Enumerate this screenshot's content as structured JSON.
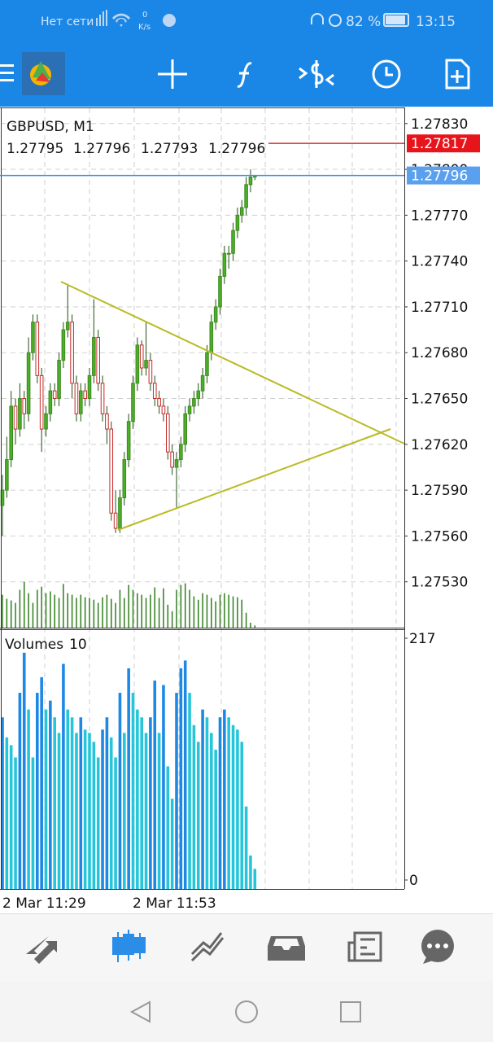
{
  "status_bar": {
    "network": "Нет сети",
    "speed": "0",
    "speed_unit": "K/s",
    "battery": "82 %",
    "time": "13:15"
  },
  "chart_data": {
    "type": "candlestick",
    "title": "GBPUSD, M1",
    "candles": [
      [
        1.2758,
        1.276,
        1.2756,
        1.2759
      ],
      [
        1.2759,
        1.27625,
        1.27585,
        1.2761
      ],
      [
        1.2761,
        1.27655,
        1.27605,
        1.27645
      ],
      [
        1.27645,
        1.2765,
        1.2762,
        1.2763
      ],
      [
        1.2763,
        1.2766,
        1.27625,
        1.2765
      ],
      [
        1.2765,
        1.27655,
        1.2763,
        1.2764
      ],
      [
        1.2764,
        1.2769,
        1.27635,
        1.2768
      ],
      [
        1.2768,
        1.27705,
        1.27675,
        1.277
      ],
      [
        1.277,
        1.27705,
        1.2766,
        1.27665
      ],
      [
        1.27665,
        1.2767,
        1.27615,
        1.2763
      ],
      [
        1.2763,
        1.27645,
        1.27625,
        1.2764
      ],
      [
        1.2764,
        1.2766,
        1.27635,
        1.27655
      ],
      [
        1.27655,
        1.2766,
        1.27645,
        1.2765
      ],
      [
        1.2765,
        1.2768,
        1.27645,
        1.27675
      ],
      [
        1.27675,
        1.277,
        1.2767,
        1.27695
      ],
      [
        1.27695,
        1.27725,
        1.2769,
        1.277
      ],
      [
        1.277,
        1.27705,
        1.2765,
        1.2766
      ],
      [
        1.2766,
        1.27665,
        1.27635,
        1.2764
      ],
      [
        1.2764,
        1.2766,
        1.27635,
        1.27655
      ],
      [
        1.27655,
        1.2766,
        1.27645,
        1.2765
      ],
      [
        1.2765,
        1.2767,
        1.27645,
        1.27665
      ],
      [
        1.27665,
        1.27715,
        1.2766,
        1.2769
      ],
      [
        1.2769,
        1.27695,
        1.27655,
        1.2766
      ],
      [
        1.2766,
        1.27665,
        1.27635,
        1.2764
      ],
      [
        1.2764,
        1.27645,
        1.2762,
        1.2763
      ],
      [
        1.2763,
        1.27635,
        1.2757,
        1.27575
      ],
      [
        1.27575,
        1.2759,
        1.27562,
        1.27565
      ],
      [
        1.27565,
        1.2759,
        1.27562,
        1.27585
      ],
      [
        1.27585,
        1.27615,
        1.2758,
        1.2761
      ],
      [
        1.2761,
        1.2764,
        1.27605,
        1.27635
      ],
      [
        1.27635,
        1.27665,
        1.2763,
        1.2766
      ],
      [
        1.2766,
        1.2769,
        1.27655,
        1.27685
      ],
      [
        1.27685,
        1.27688,
        1.27665,
        1.2767
      ],
      [
        1.2767,
        1.277,
        1.27665,
        1.27675
      ],
      [
        1.27675,
        1.2768,
        1.27655,
        1.2766
      ],
      [
        1.2766,
        1.27665,
        1.27645,
        1.2765
      ],
      [
        1.2765,
        1.27655,
        1.2764,
        1.27645
      ],
      [
        1.27645,
        1.2765,
        1.27635,
        1.2764
      ],
      [
        1.2764,
        1.27645,
        1.2761,
        1.27615
      ],
      [
        1.27615,
        1.2762,
        1.276,
        1.27605
      ],
      [
        1.27605,
        1.27615,
        1.27578,
        1.2761
      ],
      [
        1.2761,
        1.27625,
        1.27605,
        1.2762
      ],
      [
        1.2762,
        1.27645,
        1.27615,
        1.2764
      ],
      [
        1.2764,
        1.2765,
        1.27635,
        1.27645
      ],
      [
        1.27645,
        1.27655,
        1.2764,
        1.2765
      ],
      [
        1.2765,
        1.2766,
        1.27645,
        1.27655
      ],
      [
        1.27655,
        1.2767,
        1.2765,
        1.27665
      ],
      [
        1.27665,
        1.27685,
        1.2766,
        1.2768
      ],
      [
        1.2768,
        1.27705,
        1.27675,
        1.277
      ],
      [
        1.277,
        1.27715,
        1.27695,
        1.2771
      ],
      [
        1.2771,
        1.27735,
        1.27705,
        1.2773
      ],
      [
        1.2773,
        1.2775,
        1.27725,
        1.27745
      ],
      [
        1.27745,
        1.2775,
        1.27735,
        1.27745
      ],
      [
        1.27745,
        1.27765,
        1.2774,
        1.2776
      ],
      [
        1.2776,
        1.27775,
        1.27755,
        1.2777
      ],
      [
        1.2777,
        1.2778,
        1.27765,
        1.27775
      ],
      [
        1.27775,
        1.27795,
        1.2777,
        1.2779
      ],
      [
        1.2779,
        1.278,
        1.27785,
        1.27795
      ],
      [
        1.27795,
        1.27796,
        1.27793,
        1.27796
      ]
    ],
    "ylim": [
      1.275,
      1.2784
    ],
    "yticks": [
      {
        "value": 1.2783,
        "label": "1.27830"
      },
      {
        "value": 1.278,
        "label": "1.27800"
      },
      {
        "value": 1.2777,
        "label": "1.27770"
      },
      {
        "value": 1.2774,
        "label": "1.27740"
      },
      {
        "value": 1.2771,
        "label": "1.27710"
      },
      {
        "value": 1.2768,
        "label": "1.27680"
      },
      {
        "value": 1.2765,
        "label": "1.27650"
      },
      {
        "value": 1.2762,
        "label": "1.27620"
      },
      {
        "value": 1.2759,
        "label": "1.27590"
      },
      {
        "value": 1.2756,
        "label": "1.27560"
      },
      {
        "value": 1.2753,
        "label": "1.27530"
      }
    ],
    "grid": true,
    "bid": 1.27796,
    "ask": 1.27817,
    "x_labels": [
      "2 Mar 11:29",
      "2 Mar 11:53"
    ],
    "volumes": {
      "title": "Volumes",
      "values": [
        146,
        128,
        121,
        110,
        168,
        204,
        153,
        110,
        168,
        182,
        153,
        161,
        146,
        132,
        194,
        153,
        146,
        132,
        146,
        135,
        132,
        124,
        110,
        135,
        146,
        128,
        110,
        168,
        132,
        190,
        168,
        153,
        146,
        132,
        146,
        179,
        132,
        175,
        102,
        73,
        168,
        190,
        197,
        168,
        139,
        124,
        153,
        146,
        132,
        117,
        146,
        153,
        146,
        139,
        135,
        124,
        66,
        22,
        10
      ],
      "ylim": [
        0,
        217
      ],
      "yticks": [
        217,
        0
      ]
    }
  }
}
